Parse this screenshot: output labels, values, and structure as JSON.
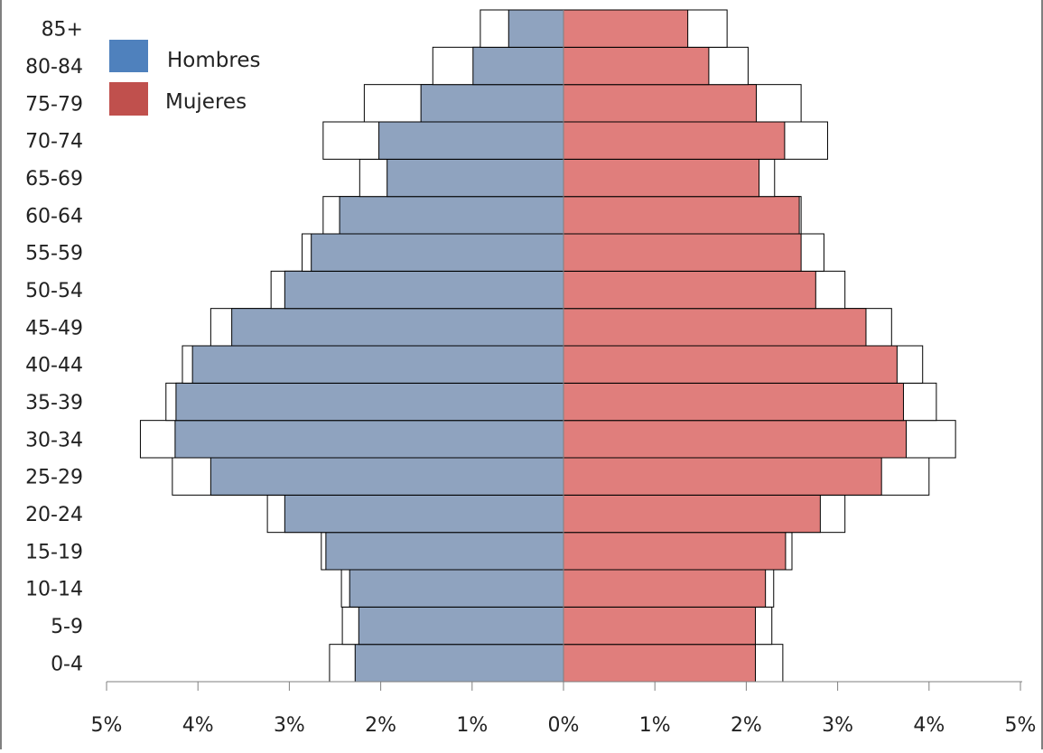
{
  "chart_data": {
    "type": "bar",
    "orientation": "horizontal-pyramid",
    "categories": [
      "0-4",
      "5-9",
      "10-14",
      "15-19",
      "20-24",
      "25-29",
      "30-34",
      "35-39",
      "40-44",
      "45-49",
      "50-54",
      "55-59",
      "60-64",
      "65-69",
      "70-74",
      "75-79",
      "80-84",
      "85+"
    ],
    "series": [
      {
        "name": "Hombres",
        "side": "left",
        "color": "#8fa3bf",
        "values": [
          2.28,
          2.24,
          2.34,
          2.6,
          3.05,
          3.86,
          4.25,
          4.24,
          4.06,
          3.63,
          3.05,
          2.76,
          2.45,
          1.93,
          2.02,
          1.56,
          0.99,
          0.6
        ]
      },
      {
        "name": "Mujeres",
        "side": "right",
        "color": "#e07e7c",
        "values": [
          2.1,
          2.1,
          2.21,
          2.43,
          2.81,
          3.48,
          3.75,
          3.72,
          3.65,
          3.31,
          2.76,
          2.6,
          2.58,
          2.14,
          2.42,
          2.11,
          1.59,
          1.36
        ]
      }
    ],
    "outline_series": [
      {
        "side": "left",
        "values": [
          2.56,
          2.42,
          2.43,
          2.65,
          3.24,
          4.28,
          4.63,
          4.35,
          4.17,
          3.86,
          3.2,
          2.86,
          2.63,
          2.23,
          2.63,
          2.18,
          1.43,
          0.91
        ]
      },
      {
        "side": "right",
        "values": [
          2.4,
          2.28,
          2.3,
          2.5,
          3.08,
          4.0,
          4.29,
          4.08,
          3.93,
          3.59,
          3.08,
          2.85,
          2.6,
          2.31,
          2.89,
          2.6,
          2.02,
          1.79
        ]
      }
    ],
    "xlim": [
      -5,
      5
    ],
    "x_ticks": [
      "5%",
      "4%",
      "3%",
      "2%",
      "1%",
      "0%",
      "1%",
      "2%",
      "3%",
      "4%",
      "5%"
    ],
    "legend_position": "top-left",
    "grid": false
  },
  "legend": {
    "men_label": "Hombres",
    "women_label": "Mujeres",
    "men_color": "#4f81bd",
    "women_color": "#c0504d"
  }
}
